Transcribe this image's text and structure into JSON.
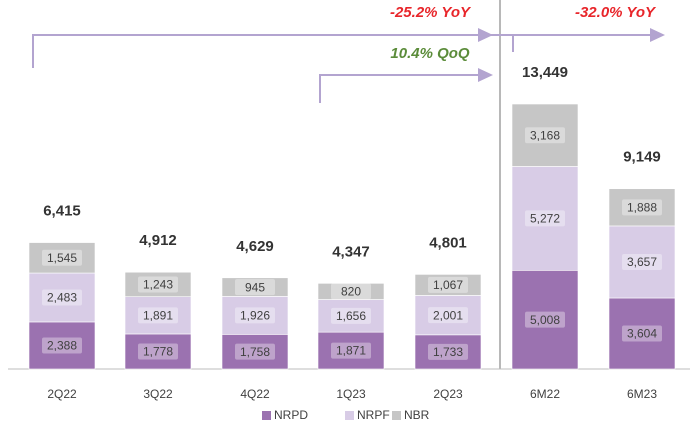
{
  "chart_data": {
    "type": "stacked_bar",
    "categories": [
      "2Q22",
      "3Q22",
      "4Q22",
      "1Q23",
      "2Q23",
      "6M22",
      "6M23"
    ],
    "series": [
      {
        "name": "NRPD",
        "color": "#9b72b0",
        "values": [
          2388,
          1778,
          1758,
          1871,
          1733,
          5008,
          3604
        ],
        "value_labels": [
          "2,388",
          "1,778",
          "1,758",
          "1,871",
          "1,733",
          "5,008",
          "3,604"
        ]
      },
      {
        "name": "NRPF",
        "color": "#d8cce6",
        "values": [
          2483,
          1891,
          1926,
          1656,
          2001,
          5272,
          3657
        ],
        "value_labels": [
          "2,483",
          "1,891",
          "1,926",
          "1,656",
          "2,001",
          "5,272",
          "3,657"
        ]
      },
      {
        "name": "NBR",
        "color": "#c6c6c6",
        "values": [
          1545,
          1243,
          945,
          820,
          1067,
          3168,
          1888
        ],
        "value_labels": [
          "1,545",
          "1,243",
          "945",
          "820",
          "1,067",
          "3,168",
          "1,888"
        ]
      }
    ],
    "totals": [
      6415,
      4912,
      4629,
      4347,
      4801,
      13449,
      9149
    ],
    "total_labels": [
      "6,415",
      "4,912",
      "4,629",
      "4,347",
      "4,801",
      "13,449",
      "9,149"
    ],
    "annotations": [
      {
        "text": "-25.2% YoY",
        "color": "#e8262b"
      },
      {
        "text": "-32.0% YoY",
        "color": "#e8262b"
      },
      {
        "text": "10.4% QoQ",
        "color": "#5b8c3a"
      }
    ],
    "legend": "bottom"
  }
}
